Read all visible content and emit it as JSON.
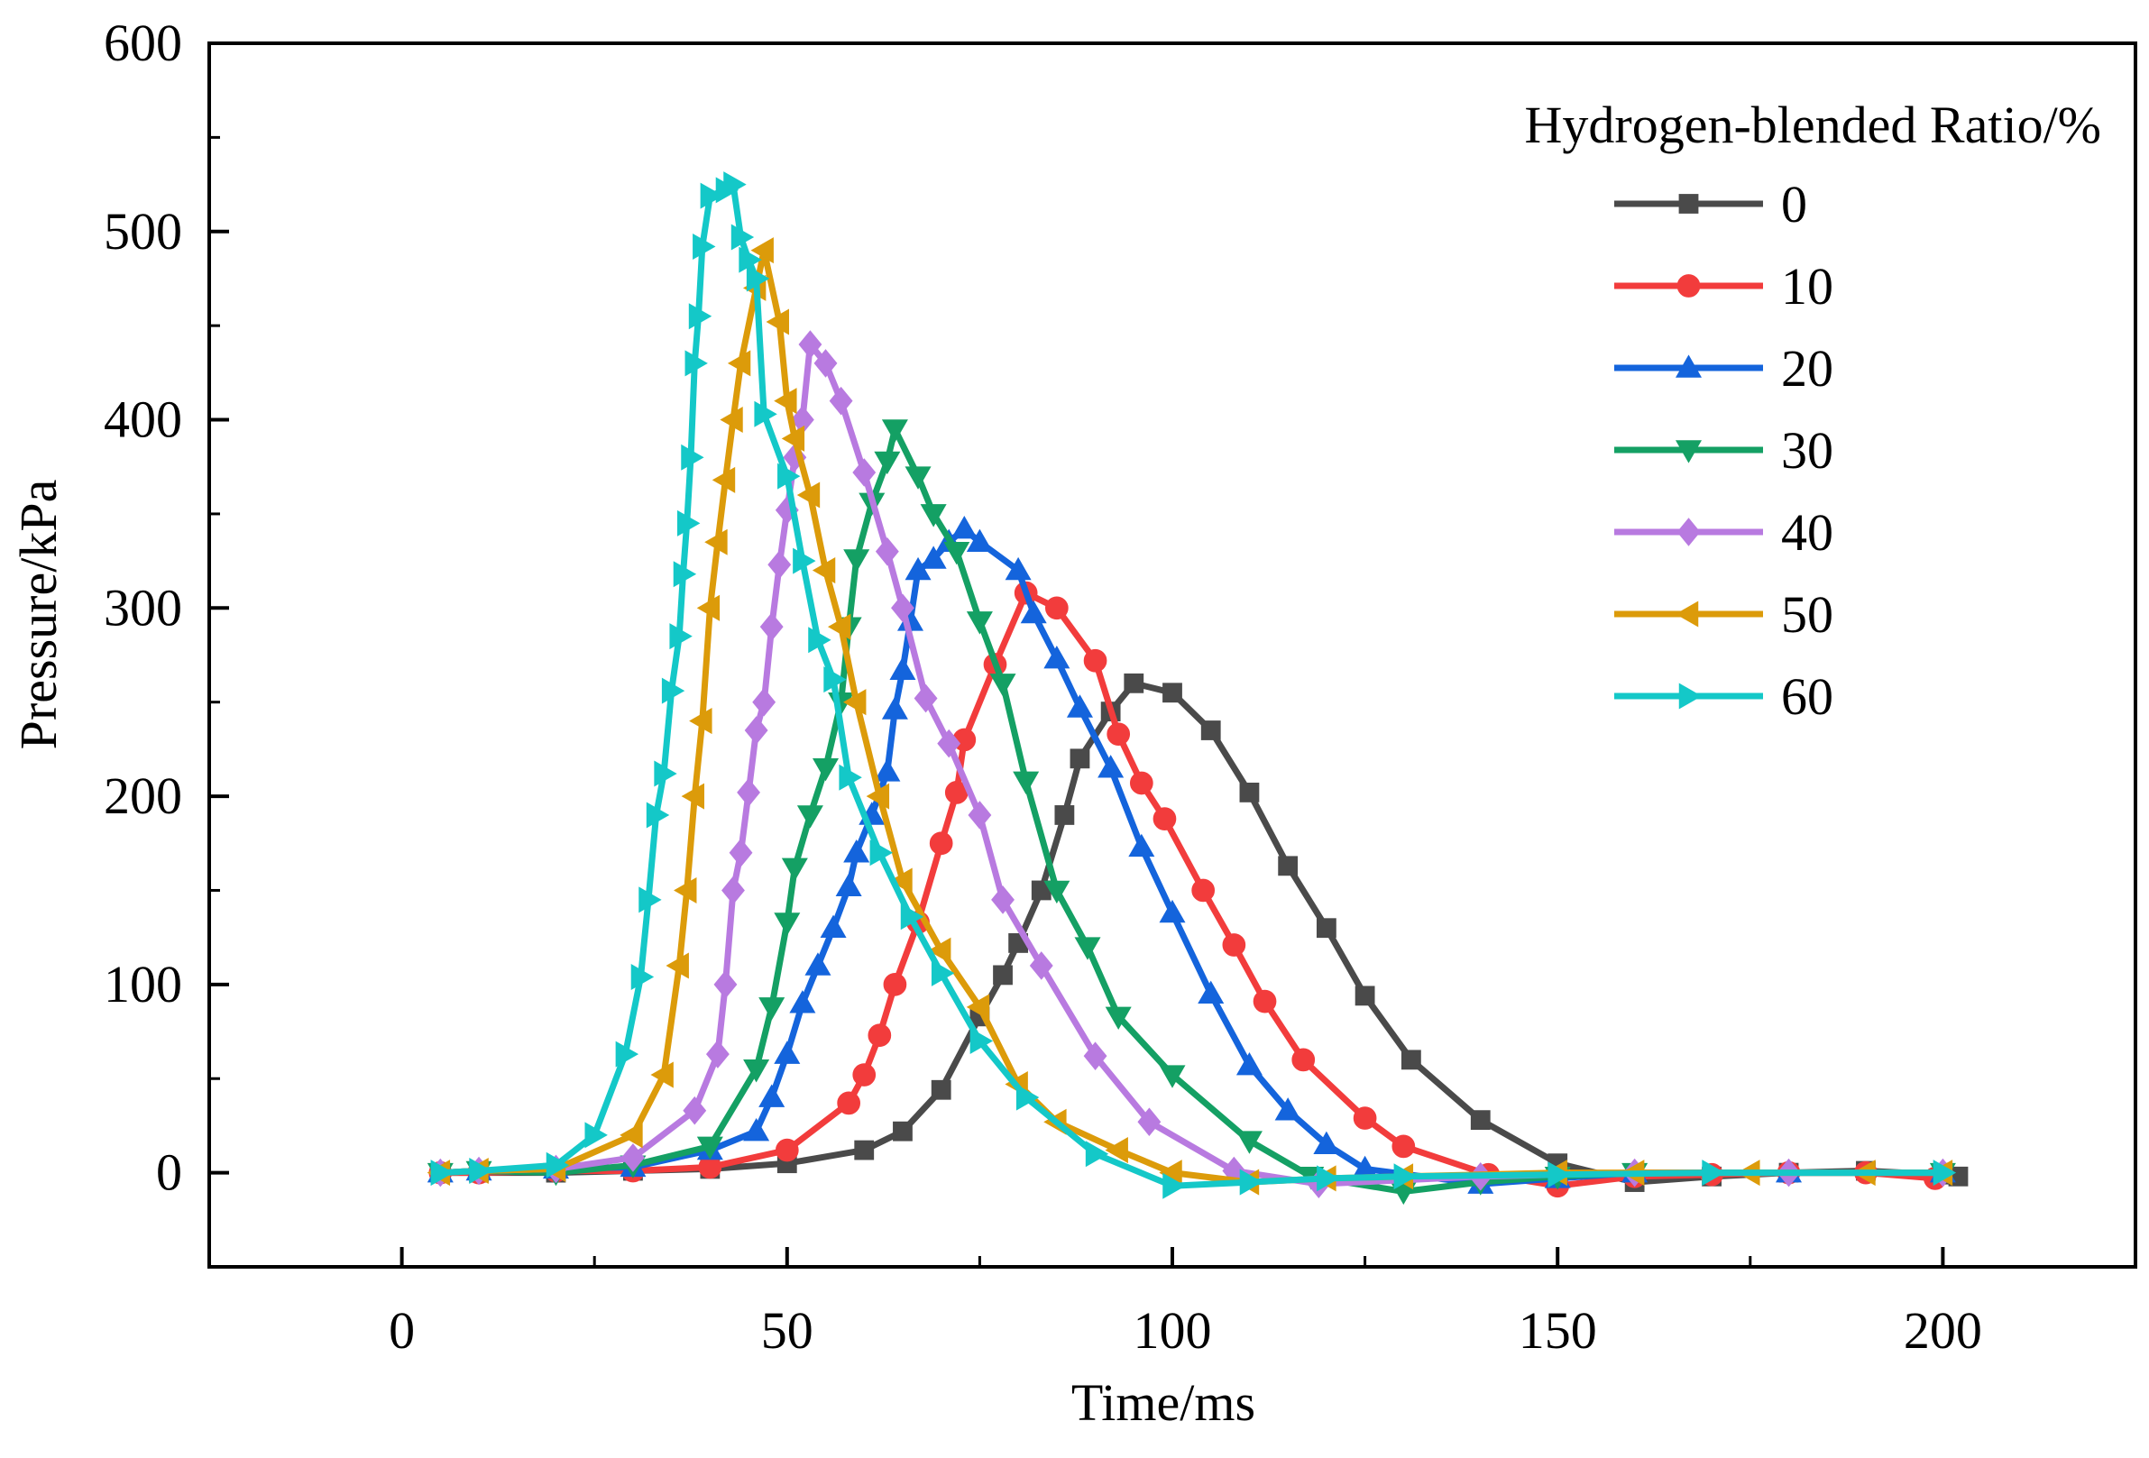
{
  "chart_data": {
    "type": "line",
    "title": "",
    "xlabel": "Time/ms",
    "ylabel": "Pressure/kPa",
    "xlim": [
      -25,
      225
    ],
    "ylim": [
      -50,
      600
    ],
    "x_ticks": [
      0,
      50,
      100,
      150,
      200
    ],
    "y_ticks": [
      0,
      100,
      200,
      300,
      400,
      500,
      600
    ],
    "grid": false,
    "legend": {
      "title": "Hydrogen-blended Ratio/%",
      "placement": "top-right"
    },
    "series": [
      {
        "name": "0",
        "color": "#4a4a4a",
        "marker": "square",
        "points": [
          [
            5,
            0
          ],
          [
            10,
            0
          ],
          [
            20,
            0
          ],
          [
            30,
            1
          ],
          [
            40,
            2
          ],
          [
            50,
            5
          ],
          [
            60,
            12
          ],
          [
            65,
            22
          ],
          [
            70,
            44
          ],
          [
            75,
            83
          ],
          [
            78,
            105
          ],
          [
            80,
            122
          ],
          [
            83,
            150
          ],
          [
            86,
            190
          ],
          [
            88,
            220
          ],
          [
            92,
            245
          ],
          [
            95,
            260
          ],
          [
            100,
            255
          ],
          [
            105,
            235
          ],
          [
            110,
            202
          ],
          [
            115,
            163
          ],
          [
            120,
            130
          ],
          [
            125,
            94
          ],
          [
            131,
            60
          ],
          [
            140,
            28
          ],
          [
            150,
            5
          ],
          [
            160,
            -5
          ],
          [
            170,
            -2
          ],
          [
            180,
            0
          ],
          [
            190,
            1
          ],
          [
            200,
            -1
          ],
          [
            202,
            -2
          ]
        ]
      },
      {
        "name": "10",
        "color": "#f23c3c",
        "marker": "circle",
        "points": [
          [
            5,
            0
          ],
          [
            10,
            0
          ],
          [
            20,
            1
          ],
          [
            30,
            1
          ],
          [
            40,
            3
          ],
          [
            50,
            12
          ],
          [
            58,
            37
          ],
          [
            60,
            52
          ],
          [
            62,
            73
          ],
          [
            64,
            100
          ],
          [
            67,
            133
          ],
          [
            70,
            175
          ],
          [
            72,
            202
          ],
          [
            73,
            230
          ],
          [
            77,
            270
          ],
          [
            81,
            308
          ],
          [
            85,
            300
          ],
          [
            90,
            272
          ],
          [
            93,
            233
          ],
          [
            96,
            207
          ],
          [
            99,
            188
          ],
          [
            104,
            150
          ],
          [
            108,
            121
          ],
          [
            112,
            91
          ],
          [
            117,
            60
          ],
          [
            125,
            29
          ],
          [
            130,
            14
          ],
          [
            141,
            -1
          ],
          [
            150,
            -7
          ],
          [
            160,
            -2
          ],
          [
            170,
            -1
          ],
          [
            180,
            0
          ],
          [
            190,
            0
          ],
          [
            199,
            -3
          ]
        ]
      },
      {
        "name": "20",
        "color": "#1464dc",
        "marker": "triangle-up",
        "points": [
          [
            5,
            0
          ],
          [
            10,
            1
          ],
          [
            20,
            2
          ],
          [
            30,
            3
          ],
          [
            40,
            12
          ],
          [
            46,
            22
          ],
          [
            48,
            40
          ],
          [
            50,
            63
          ],
          [
            52,
            90
          ],
          [
            54,
            110
          ],
          [
            56,
            130
          ],
          [
            58,
            152
          ],
          [
            59,
            170
          ],
          [
            61,
            190
          ],
          [
            63,
            213
          ],
          [
            64,
            246
          ],
          [
            65,
            267
          ],
          [
            66,
            293
          ],
          [
            67,
            320
          ],
          [
            69,
            326
          ],
          [
            71,
            335
          ],
          [
            73,
            342
          ],
          [
            75,
            335
          ],
          [
            80,
            320
          ],
          [
            82,
            297
          ],
          [
            85,
            273
          ],
          [
            88,
            247
          ],
          [
            92,
            215
          ],
          [
            96,
            173
          ],
          [
            100,
            138
          ],
          [
            105,
            95
          ],
          [
            110,
            57
          ],
          [
            115,
            33
          ],
          [
            120,
            15
          ],
          [
            125,
            2
          ],
          [
            140,
            -6
          ],
          [
            150,
            -3
          ],
          [
            160,
            0
          ],
          [
            180,
            0
          ],
          [
            200,
            0
          ]
        ]
      },
      {
        "name": "30",
        "color": "#14a064",
        "marker": "triangle-down",
        "points": [
          [
            5,
            0
          ],
          [
            10,
            1
          ],
          [
            20,
            0
          ],
          [
            30,
            4
          ],
          [
            40,
            14
          ],
          [
            46,
            55
          ],
          [
            48,
            88
          ],
          [
            50,
            133
          ],
          [
            51,
            162
          ],
          [
            53,
            190
          ],
          [
            55,
            215
          ],
          [
            57,
            250
          ],
          [
            58,
            290
          ],
          [
            59,
            326
          ],
          [
            61,
            356
          ],
          [
            63,
            378
          ],
          [
            64,
            395
          ],
          [
            67,
            370
          ],
          [
            69,
            350
          ],
          [
            72,
            330
          ],
          [
            75,
            293
          ],
          [
            78,
            260
          ],
          [
            81,
            208
          ],
          [
            85,
            150
          ],
          [
            89,
            120
          ],
          [
            93,
            83
          ],
          [
            100,
            52
          ],
          [
            110,
            17
          ],
          [
            118,
            -2
          ],
          [
            130,
            -10
          ],
          [
            140,
            -5
          ],
          [
            150,
            -2
          ],
          [
            160,
            0
          ],
          [
            200,
            0
          ]
        ]
      },
      {
        "name": "40",
        "color": "#b87ae0",
        "marker": "diamond",
        "points": [
          [
            5,
            0
          ],
          [
            10,
            1
          ],
          [
            20,
            2
          ],
          [
            30,
            8
          ],
          [
            38,
            33
          ],
          [
            41,
            63
          ],
          [
            42,
            100
          ],
          [
            43,
            150
          ],
          [
            44,
            170
          ],
          [
            45,
            202
          ],
          [
            46,
            235
          ],
          [
            47,
            250
          ],
          [
            48,
            290
          ],
          [
            49,
            323
          ],
          [
            50,
            352
          ],
          [
            51,
            380
          ],
          [
            52,
            400
          ],
          [
            53,
            440
          ],
          [
            55,
            430
          ],
          [
            57,
            410
          ],
          [
            60,
            372
          ],
          [
            63,
            330
          ],
          [
            65,
            300
          ],
          [
            68,
            252
          ],
          [
            71,
            228
          ],
          [
            75,
            190
          ],
          [
            78,
            145
          ],
          [
            83,
            110
          ],
          [
            90,
            62
          ],
          [
            97,
            27
          ],
          [
            108,
            1
          ],
          [
            119,
            -6
          ],
          [
            140,
            -2
          ],
          [
            160,
            0
          ],
          [
            180,
            0
          ],
          [
            200,
            0
          ]
        ]
      },
      {
        "name": "50",
        "color": "#dc9b0a",
        "marker": "triangle-left",
        "points": [
          [
            5,
            0
          ],
          [
            10,
            1
          ],
          [
            20,
            2
          ],
          [
            30,
            20
          ],
          [
            34,
            52
          ],
          [
            36,
            110
          ],
          [
            37,
            150
          ],
          [
            38,
            200
          ],
          [
            39,
            240
          ],
          [
            40,
            300
          ],
          [
            41,
            335
          ],
          [
            42,
            368
          ],
          [
            43,
            400
          ],
          [
            44,
            430
          ],
          [
            46,
            470
          ],
          [
            47,
            490
          ],
          [
            49,
            452
          ],
          [
            50,
            410
          ],
          [
            51,
            390
          ],
          [
            53,
            360
          ],
          [
            55,
            320
          ],
          [
            57,
            290
          ],
          [
            59,
            250
          ],
          [
            62,
            200
          ],
          [
            65,
            155
          ],
          [
            70,
            118
          ],
          [
            75,
            88
          ],
          [
            80,
            47
          ],
          [
            85,
            27
          ],
          [
            93,
            12
          ],
          [
            100,
            0
          ],
          [
            110,
            -5
          ],
          [
            120,
            -3
          ],
          [
            130,
            -2
          ],
          [
            150,
            0
          ],
          [
            160,
            0
          ],
          [
            175,
            0
          ],
          [
            190,
            0
          ],
          [
            200,
            0
          ]
        ]
      },
      {
        "name": "60",
        "color": "#14c8c8",
        "marker": "triangle-right",
        "points": [
          [
            5,
            0
          ],
          [
            10,
            1
          ],
          [
            20,
            4
          ],
          [
            25,
            20
          ],
          [
            29,
            63
          ],
          [
            31,
            104
          ],
          [
            32,
            145
          ],
          [
            33,
            190
          ],
          [
            34,
            212
          ],
          [
            35,
            256
          ],
          [
            36,
            285
          ],
          [
            36.5,
            318
          ],
          [
            37,
            345
          ],
          [
            37.5,
            380
          ],
          [
            38,
            430
          ],
          [
            38.5,
            455
          ],
          [
            39,
            492
          ],
          [
            40,
            519
          ],
          [
            42,
            522
          ],
          [
            43,
            525
          ],
          [
            44,
            497
          ],
          [
            45,
            485
          ],
          [
            46,
            475
          ],
          [
            47,
            403
          ],
          [
            50,
            370
          ],
          [
            52,
            325
          ],
          [
            54,
            283
          ],
          [
            56,
            262
          ],
          [
            58,
            210
          ],
          [
            62,
            170
          ],
          [
            66,
            136
          ],
          [
            70,
            106
          ],
          [
            75,
            70
          ],
          [
            81,
            40
          ],
          [
            90,
            10
          ],
          [
            100,
            -7
          ],
          [
            110,
            -5
          ],
          [
            120,
            -3
          ],
          [
            130,
            -2
          ],
          [
            150,
            -1
          ],
          [
            170,
            0
          ],
          [
            200,
            0
          ]
        ]
      }
    ]
  }
}
